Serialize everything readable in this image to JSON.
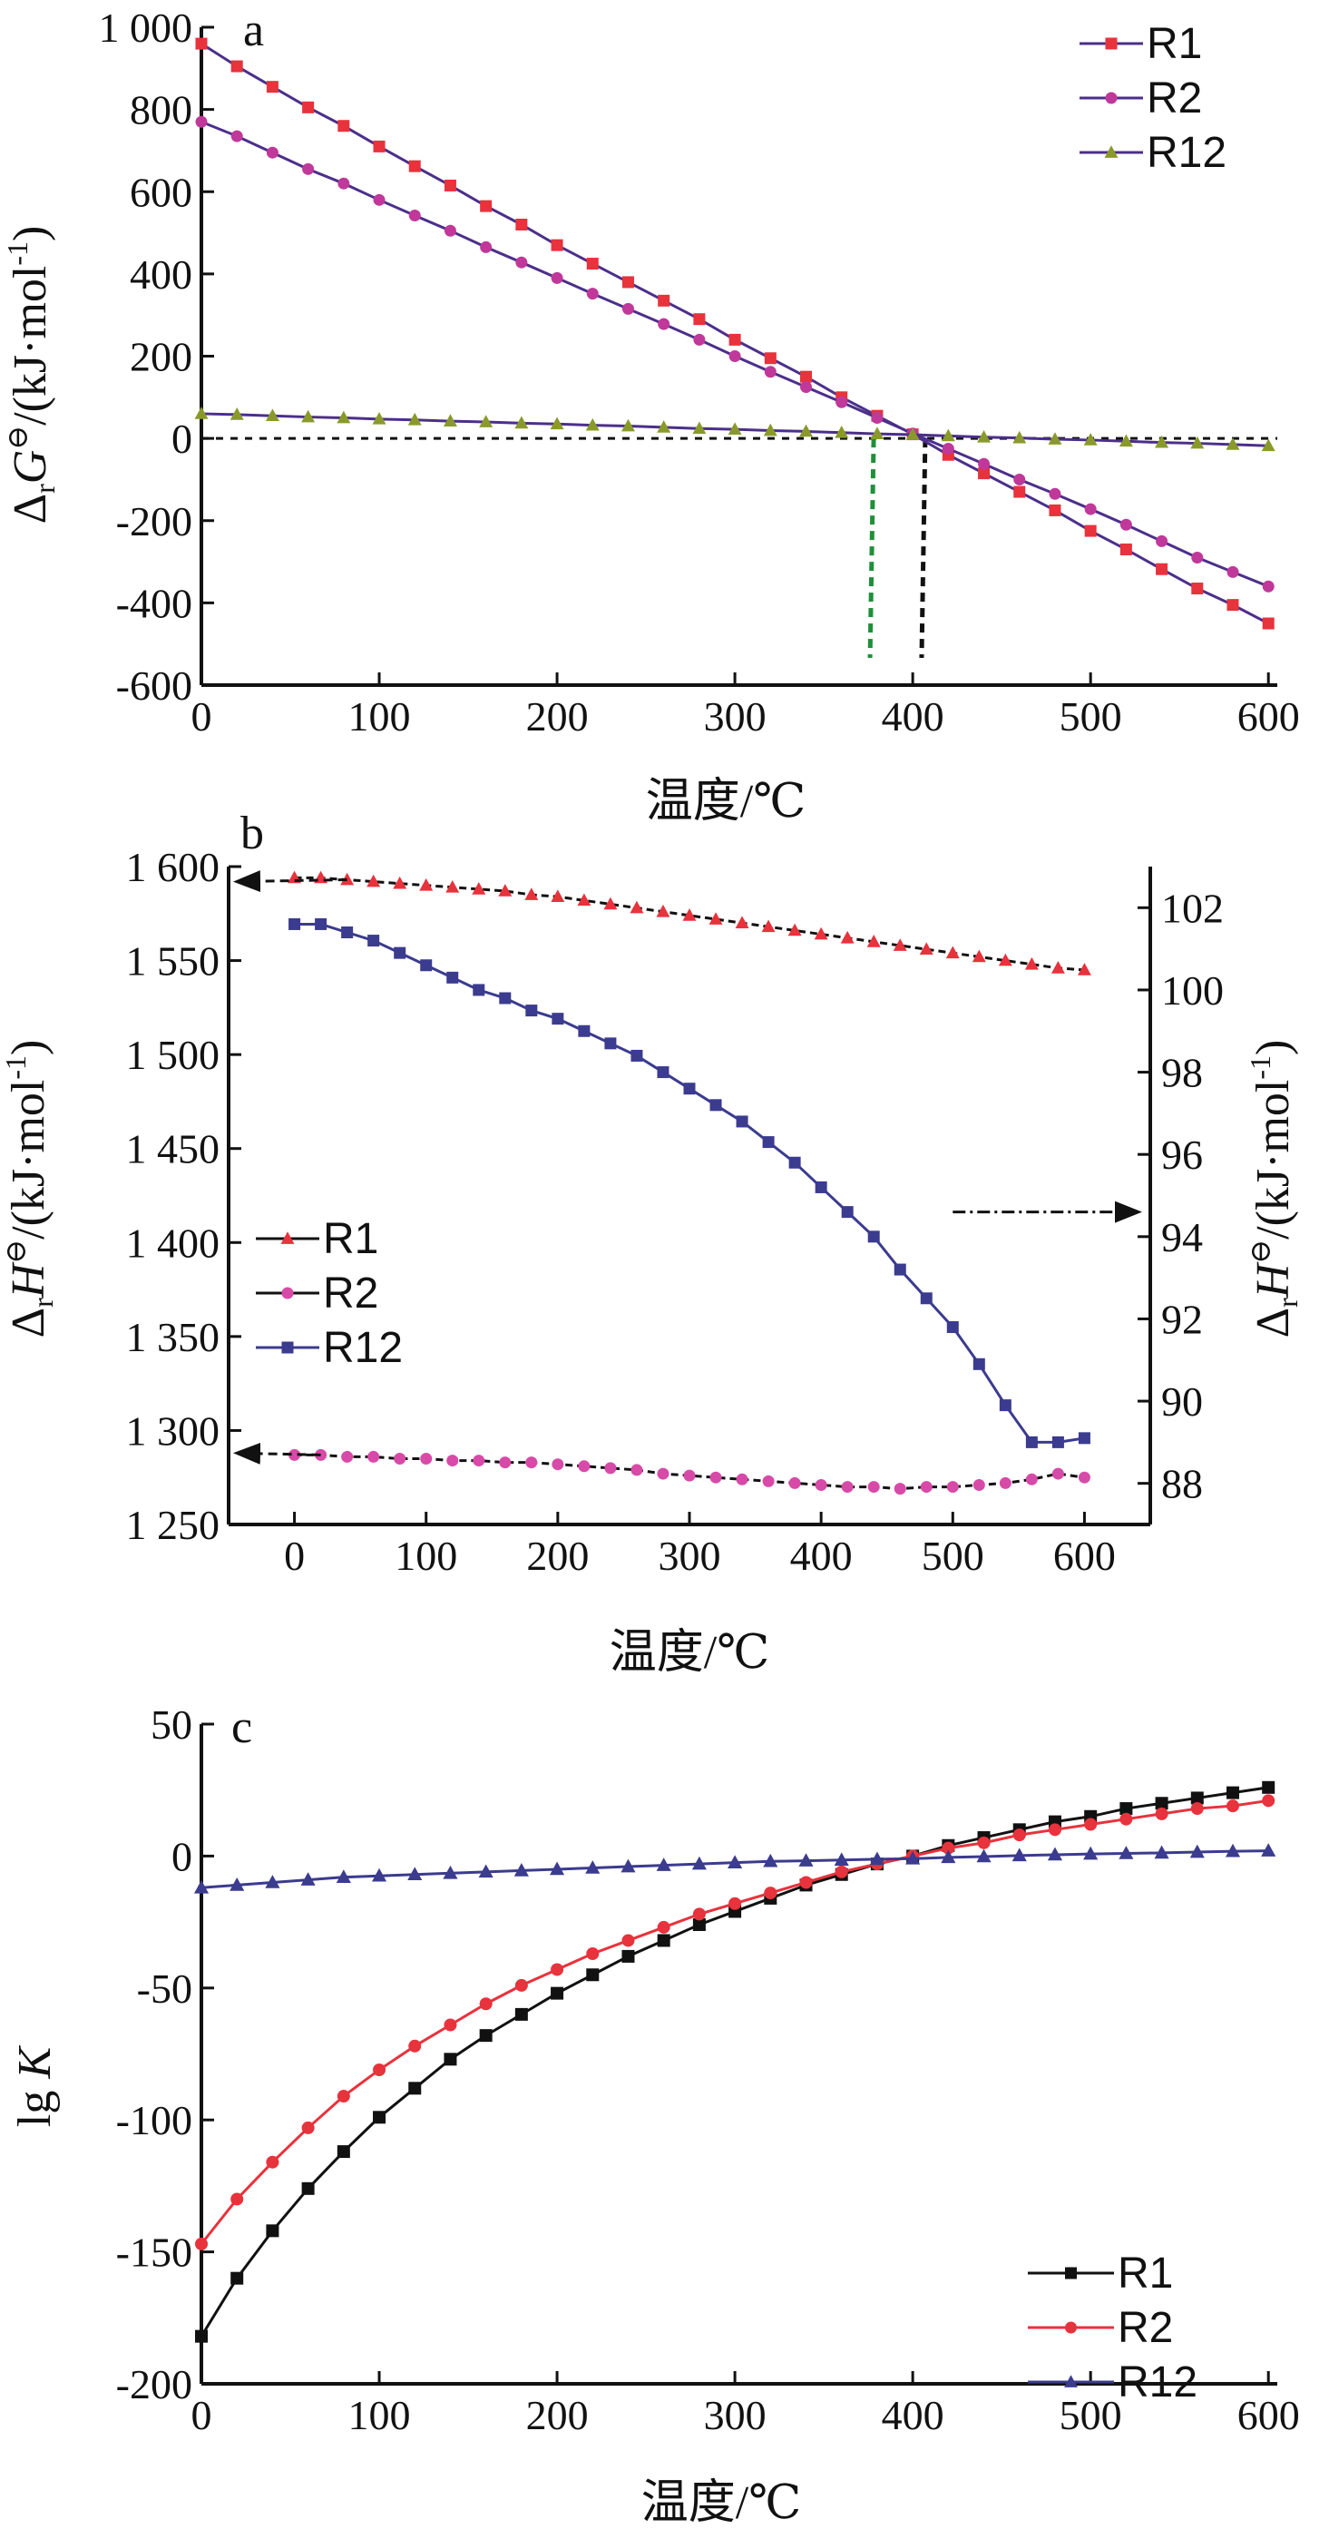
{
  "chart_data": [
    {
      "panel": "a",
      "type": "line",
      "xlabel": "温度/℃",
      "ylabel_prefix": "Δ",
      "ylabel_sub": "r",
      "ylabel_sym": "G",
      "ylabel_sup": "⊖",
      "ylabel_unit": "/(kJ·mol",
      "ylabel_unit_sup": "-1",
      "ylabel_close": ")",
      "xlim": [
        0,
        605
      ],
      "ylim": [
        -600,
        1000
      ],
      "xticks": [
        0,
        100,
        200,
        300,
        400,
        500,
        600
      ],
      "yticks": [
        -600,
        -400,
        -200,
        0,
        200,
        400,
        600,
        800,
        1000
      ],
      "ytick_labels": [
        "-600",
        "-400",
        "-200",
        "0",
        "200",
        "400",
        "600",
        "800",
        "1 000"
      ],
      "legend_position": "top-right",
      "hline": 0,
      "vlines": [
        {
          "x": 376,
          "color": "#1f8f3a"
        },
        {
          "x": 405,
          "color": "#111111"
        }
      ],
      "series": [
        {
          "name": "R1",
          "color": "#e8323c",
          "line": "#4b2f8a",
          "marker": "square",
          "x": [
            0,
            20,
            40,
            60,
            80,
            100,
            120,
            140,
            160,
            180,
            200,
            220,
            240,
            260,
            280,
            300,
            320,
            340,
            360,
            380,
            400,
            420,
            440,
            460,
            480,
            500,
            520,
            540,
            560,
            580,
            600
          ],
          "y": [
            960,
            905,
            855,
            805,
            760,
            710,
            662,
            615,
            565,
            520,
            470,
            425,
            380,
            335,
            290,
            240,
            195,
            150,
            100,
            55,
            10,
            -40,
            -85,
            -130,
            -175,
            -225,
            -270,
            -318,
            -365,
            -405,
            -450
          ]
        },
        {
          "name": "R2",
          "color": "#c0389a",
          "line": "#4b2f8a",
          "marker": "circle",
          "x": [
            0,
            20,
            40,
            60,
            80,
            100,
            120,
            140,
            160,
            180,
            200,
            220,
            240,
            260,
            280,
            300,
            320,
            340,
            360,
            380,
            400,
            420,
            440,
            460,
            480,
            500,
            520,
            540,
            560,
            580,
            600
          ],
          "y": [
            770,
            735,
            695,
            655,
            620,
            580,
            542,
            505,
            465,
            428,
            390,
            352,
            315,
            278,
            240,
            200,
            162,
            125,
            88,
            50,
            12,
            -25,
            -62,
            -100,
            -135,
            -172,
            -210,
            -250,
            -290,
            -325,
            -360
          ]
        },
        {
          "name": "R12",
          "color": "#8a9a2a",
          "line": "#4b2f8a",
          "marker": "triangle",
          "x": [
            0,
            20,
            40,
            60,
            80,
            100,
            120,
            140,
            160,
            180,
            200,
            220,
            240,
            260,
            280,
            300,
            320,
            340,
            360,
            380,
            400,
            420,
            440,
            460,
            480,
            500,
            520,
            540,
            560,
            580,
            600
          ],
          "y": [
            60,
            58,
            55,
            52,
            50,
            47,
            45,
            42,
            40,
            37,
            35,
            32,
            30,
            27,
            24,
            22,
            19,
            17,
            14,
            11,
            9,
            6,
            3,
            1,
            -2,
            -4,
            -7,
            -10,
            -12,
            -15,
            -18
          ]
        }
      ]
    },
    {
      "panel": "b",
      "type": "line",
      "xlabel": "温度/℃",
      "ylabel_prefix": "Δ",
      "ylabel_sub": "r",
      "ylabel_sym": "H",
      "ylabel_sup": "⊖",
      "ylabel_unit": "/(kJ·mol",
      "ylabel_unit_sup": "-1",
      "ylabel_close": ")",
      "y2label_prefix": "Δ",
      "y2label_sub": "r",
      "y2label_sym": "H",
      "y2label_sup": "⊖",
      "y2label_unit": "/(kJ·mol",
      "y2label_unit_sup": "-1",
      "y2label_close": ")",
      "xlim": [
        -50,
        650
      ],
      "ylim": [
        1250,
        1600
      ],
      "y2lim": [
        87,
        103
      ],
      "xticks": [
        0,
        100,
        200,
        300,
        400,
        500,
        600
      ],
      "yticks": [
        1250,
        1300,
        1350,
        1400,
        1450,
        1500,
        1550,
        1600
      ],
      "ytick_labels": [
        "1 250",
        "1 300",
        "1 350",
        "1 400",
        "1 450",
        "1 500",
        "1 550",
        "1 600"
      ],
      "y2ticks": [
        88,
        90,
        92,
        94,
        96,
        98,
        100,
        102
      ],
      "legend_position": "left",
      "series": [
        {
          "name": "R1",
          "axis": "left",
          "color": "#e8323c",
          "line": "#111111",
          "marker": "triangle",
          "x": [
            0,
            20,
            40,
            60,
            80,
            100,
            120,
            140,
            160,
            180,
            200,
            220,
            240,
            260,
            280,
            300,
            320,
            340,
            360,
            380,
            400,
            420,
            440,
            460,
            480,
            500,
            520,
            540,
            560,
            580,
            600
          ],
          "y": [
            1594,
            1594,
            1593,
            1592,
            1591,
            1590,
            1589,
            1588,
            1587,
            1585,
            1584,
            1582,
            1580,
            1578,
            1576,
            1574,
            1572,
            1570,
            1568,
            1566,
            1564,
            1562,
            1560,
            1558,
            1556,
            1554,
            1552,
            1550,
            1548,
            1546,
            1545
          ]
        },
        {
          "name": "R2",
          "axis": "left",
          "color": "#d84aa8",
          "line": "#111111",
          "marker": "circle",
          "x": [
            0,
            20,
            40,
            60,
            80,
            100,
            120,
            140,
            160,
            180,
            200,
            220,
            240,
            260,
            280,
            300,
            320,
            340,
            360,
            380,
            400,
            420,
            440,
            460,
            480,
            500,
            520,
            540,
            560,
            580,
            600
          ],
          "y": [
            1287,
            1287,
            1286,
            1286,
            1285,
            1285,
            1284,
            1284,
            1283,
            1283,
            1282,
            1281,
            1280,
            1279,
            1277,
            1276,
            1275,
            1274,
            1273,
            1272,
            1271,
            1270,
            1270,
            1269,
            1270,
            1270,
            1271,
            1272,
            1274,
            1277,
            1275
          ]
        },
        {
          "name": "R12",
          "axis": "right",
          "color": "#3b3b8f",
          "line": "#3b3b8f",
          "marker": "square",
          "x": [
            0,
            20,
            40,
            60,
            80,
            100,
            120,
            140,
            160,
            180,
            200,
            220,
            240,
            260,
            280,
            300,
            320,
            340,
            360,
            380,
            400,
            420,
            440,
            460,
            480,
            500,
            520,
            540,
            560,
            580,
            600
          ],
          "y": [
            101.6,
            101.6,
            101.4,
            101.2,
            100.9,
            100.6,
            100.3,
            100.0,
            99.8,
            99.5,
            99.3,
            99.0,
            98.7,
            98.4,
            98.0,
            97.6,
            97.2,
            96.8,
            96.3,
            95.8,
            95.2,
            94.6,
            94.0,
            93.2,
            92.5,
            91.8,
            90.9,
            89.9,
            89.0,
            89.0,
            89.1
          ]
        }
      ]
    },
    {
      "panel": "c",
      "type": "line",
      "xlabel": "温度/℃",
      "ylabel_prefix": "lg ",
      "ylabel_sym": "K",
      "xlim": [
        0,
        605
      ],
      "ylim": [
        -200,
        50
      ],
      "xticks": [
        0,
        100,
        200,
        300,
        400,
        500,
        600
      ],
      "yticks": [
        -200,
        -150,
        -100,
        -50,
        0,
        50
      ],
      "ytick_labels": [
        "-200",
        "-150",
        "-100",
        "-50",
        "0",
        "50"
      ],
      "legend_position": "bottom-right",
      "series": [
        {
          "name": "R1",
          "color": "#111111",
          "line": "#111111",
          "marker": "square",
          "x": [
            0,
            20,
            40,
            60,
            80,
            100,
            120,
            140,
            160,
            180,
            200,
            220,
            240,
            260,
            280,
            300,
            320,
            340,
            360,
            380,
            400,
            420,
            440,
            460,
            480,
            500,
            520,
            540,
            560,
            580,
            600
          ],
          "y": [
            -182,
            -160,
            -142,
            -126,
            -112,
            -99,
            -88,
            -77,
            -68,
            -60,
            -52,
            -45,
            -38,
            -32,
            -26,
            -21,
            -16,
            -11,
            -7,
            -3,
            0,
            4,
            7,
            10,
            13,
            15,
            18,
            20,
            22,
            24,
            26
          ]
        },
        {
          "name": "R2",
          "color": "#e8323c",
          "line": "#e8323c",
          "marker": "circle",
          "x": [
            0,
            20,
            40,
            60,
            80,
            100,
            120,
            140,
            160,
            180,
            200,
            220,
            240,
            260,
            280,
            300,
            320,
            340,
            360,
            380,
            400,
            420,
            440,
            460,
            480,
            500,
            520,
            540,
            560,
            580,
            600
          ],
          "y": [
            -147,
            -130,
            -116,
            -103,
            -91,
            -81,
            -72,
            -64,
            -56,
            -49,
            -43,
            -37,
            -32,
            -27,
            -22,
            -18,
            -14,
            -10,
            -6,
            -3,
            0,
            3,
            5,
            8,
            10,
            12,
            14,
            16,
            18,
            19,
            21
          ]
        },
        {
          "name": "R12",
          "color": "#3b3b8f",
          "line": "#3b3b8f",
          "marker": "triangle",
          "x": [
            0,
            20,
            40,
            60,
            80,
            100,
            120,
            140,
            160,
            180,
            200,
            220,
            240,
            260,
            280,
            300,
            320,
            340,
            360,
            380,
            400,
            420,
            440,
            460,
            480,
            500,
            520,
            540,
            560,
            580,
            600
          ],
          "y": [
            -12,
            -11,
            -10,
            -9,
            -8,
            -7.5,
            -7,
            -6.5,
            -6,
            -5.5,
            -5,
            -4.5,
            -4,
            -3.5,
            -3,
            -2.5,
            -2,
            -1.8,
            -1.5,
            -1.2,
            -1,
            -0.5,
            -0.2,
            0.2,
            0.5,
            0.8,
            1,
            1.2,
            1.5,
            1.8,
            2
          ]
        }
      ]
    }
  ]
}
